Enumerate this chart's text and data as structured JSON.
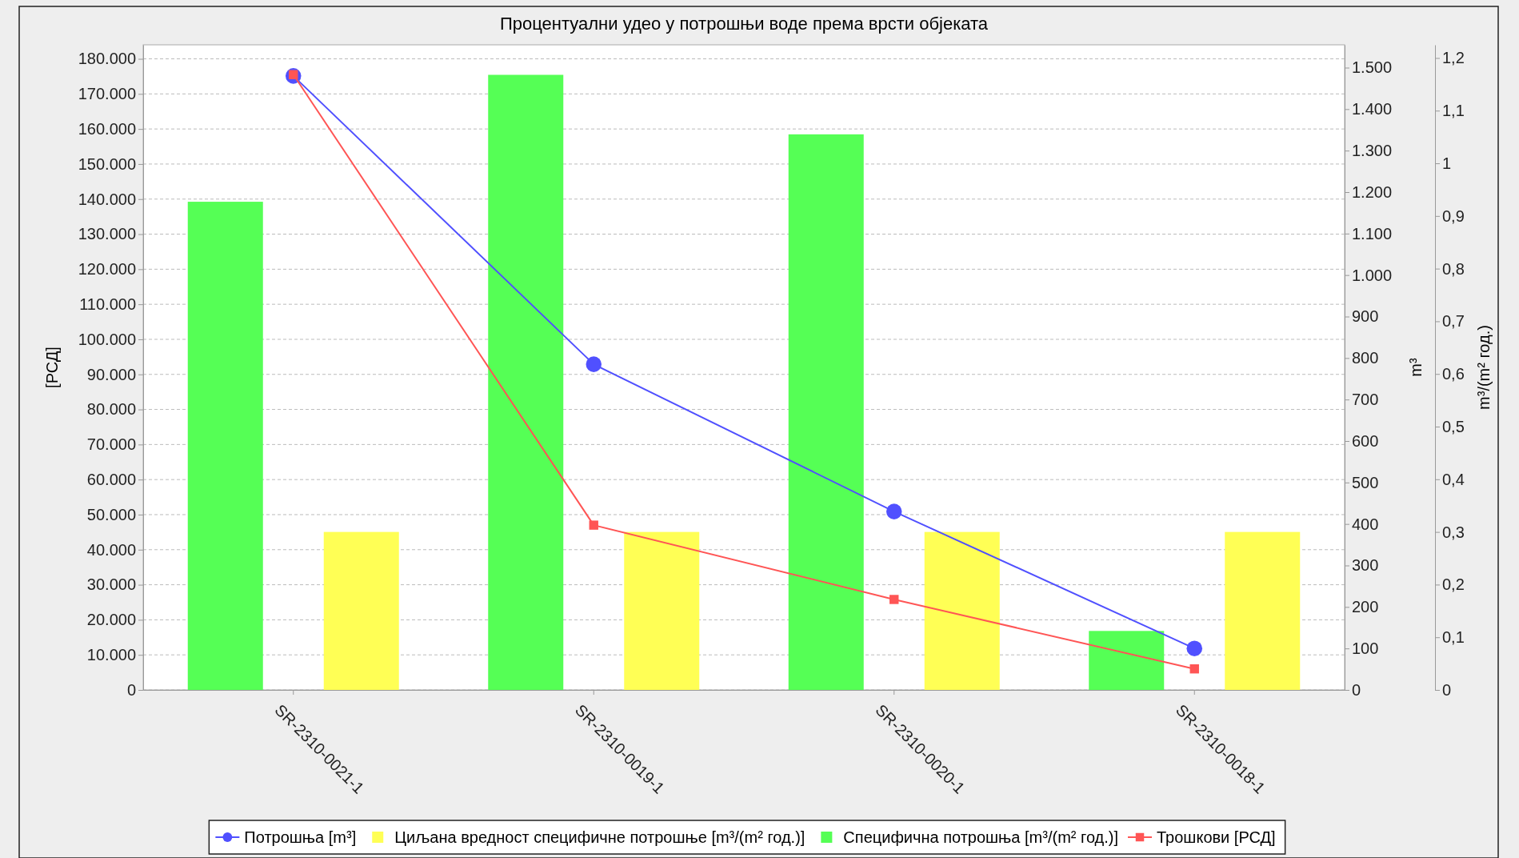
{
  "chart_data": {
    "type": "bar",
    "title": "Процентуални удео у потрошњи воде према врсти објеката",
    "categories": [
      "SR-2310-0021-1",
      "SR-2310-0019-1",
      "SR-2310-0020-1",
      "SR-2310-0018-1"
    ],
    "ylabel": "[РСД]",
    "y2label": "m³",
    "y3label": "m³/(m² год.)",
    "ylim": [
      0,
      184000
    ],
    "yticks": [
      0,
      {
        "value": 10000,
        "label": "10.000"
      },
      {
        "value": 20000,
        "label": "20.000"
      },
      {
        "value": 30000,
        "label": "30.000"
      },
      {
        "value": 40000,
        "label": "40.000"
      },
      {
        "value": 50000,
        "label": "50.000"
      },
      {
        "value": 60000,
        "label": "60.000"
      },
      {
        "value": 70000,
        "label": "70.000"
      },
      {
        "value": 80000,
        "label": "80.000"
      },
      {
        "value": 90000,
        "label": "90.000"
      },
      {
        "value": 100000,
        "label": "100.000"
      },
      {
        "value": 110000,
        "label": "110.000"
      },
      {
        "value": 120000,
        "label": "120.000"
      },
      {
        "value": 130000,
        "label": "130.000"
      },
      {
        "value": 140000,
        "label": "140.000"
      },
      {
        "value": 150000,
        "label": "150.000"
      },
      {
        "value": 160000,
        "label": "160.000"
      },
      {
        "value": 170000,
        "label": "170.000"
      },
      {
        "value": 180000,
        "label": "180.000"
      }
    ],
    "y2lim": [
      0,
      1555
    ],
    "y2ticks": [
      0,
      100,
      200,
      300,
      400,
      500,
      600,
      700,
      800,
      900,
      {
        "value": 1000,
        "label": "1.000"
      },
      {
        "value": 1100,
        "label": "1.100"
      },
      {
        "value": 1200,
        "label": "1.200"
      },
      {
        "value": 1300,
        "label": "1.300"
      },
      {
        "value": 1400,
        "label": "1.400"
      },
      {
        "value": 1500,
        "label": "1.500"
      }
    ],
    "y3lim": [
      0,
      1.225
    ],
    "y3ticks": [
      0,
      {
        "value": 0.1,
        "label": "0,1"
      },
      {
        "value": 0.2,
        "label": "0,2"
      },
      {
        "value": 0.3,
        "label": "0,3"
      },
      {
        "value": 0.4,
        "label": "0,4"
      },
      {
        "value": 0.5,
        "label": "0,5"
      },
      {
        "value": 0.6,
        "label": "0,6"
      },
      {
        "value": 0.7,
        "label": "0,7"
      },
      {
        "value": 0.8,
        "label": "0,8"
      },
      {
        "value": 0.9,
        "label": "0,9"
      },
      1,
      {
        "value": 1.1,
        "label": "1,1"
      },
      {
        "value": 1.2,
        "label": "1,2"
      }
    ],
    "grid": "y",
    "legend": "bottom",
    "series": [
      {
        "name": "Потрошња  [m³]",
        "type": "line",
        "axis": "y2",
        "marker": "circle",
        "color": "#5050ff",
        "values": [
          1480,
          785,
          430,
          100
        ]
      },
      {
        "name": "Циљана вредност специфичне потрошње [m³/(m² год.)]",
        "axis": "y3",
        "color": "#ffff55",
        "values": [
          0.3,
          0.3,
          0.3,
          0.3
        ]
      },
      {
        "name": "Специфична потрошња [m³/(m² год.)]",
        "axis": "y3",
        "color": "#55ff55",
        "values": [
          0.927,
          1.168,
          1.055,
          0.112
        ]
      },
      {
        "name": "Трошкови [РСД]",
        "type": "line",
        "axis": "y",
        "marker": "square",
        "color": "#ff5555",
        "values": [
          175500,
          47000,
          25800,
          6000
        ]
      }
    ]
  }
}
